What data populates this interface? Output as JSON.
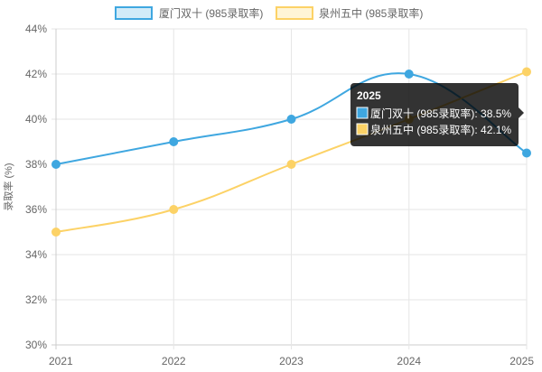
{
  "chart_data": {
    "type": "line",
    "x": [
      "2021",
      "2022",
      "2023",
      "2024",
      "2025"
    ],
    "series": [
      {
        "name": "厦门双十 (985录取率)",
        "values": [
          38,
          39,
          40,
          42,
          38.5
        ],
        "color": "#3fa7e0",
        "fill": "#d2ebf8"
      },
      {
        "name": "泉州五中 (985录取率)",
        "values": [
          35,
          36,
          38,
          40,
          42.1
        ],
        "color": "#fcd266",
        "fill": "#fff5d6"
      }
    ],
    "ylabel": "录取率 (%)",
    "ylim": [
      30,
      44
    ],
    "yticks": [
      30,
      32,
      34,
      36,
      38,
      40,
      42,
      44
    ],
    "ytick_suffix": "%",
    "grid": true,
    "legend": "top-center",
    "tooltip": {
      "title": "2025",
      "lines": [
        "厦门双十 (985录取率): 38.5%",
        "泉州五中 (985录取率): 42.1%"
      ]
    }
  }
}
